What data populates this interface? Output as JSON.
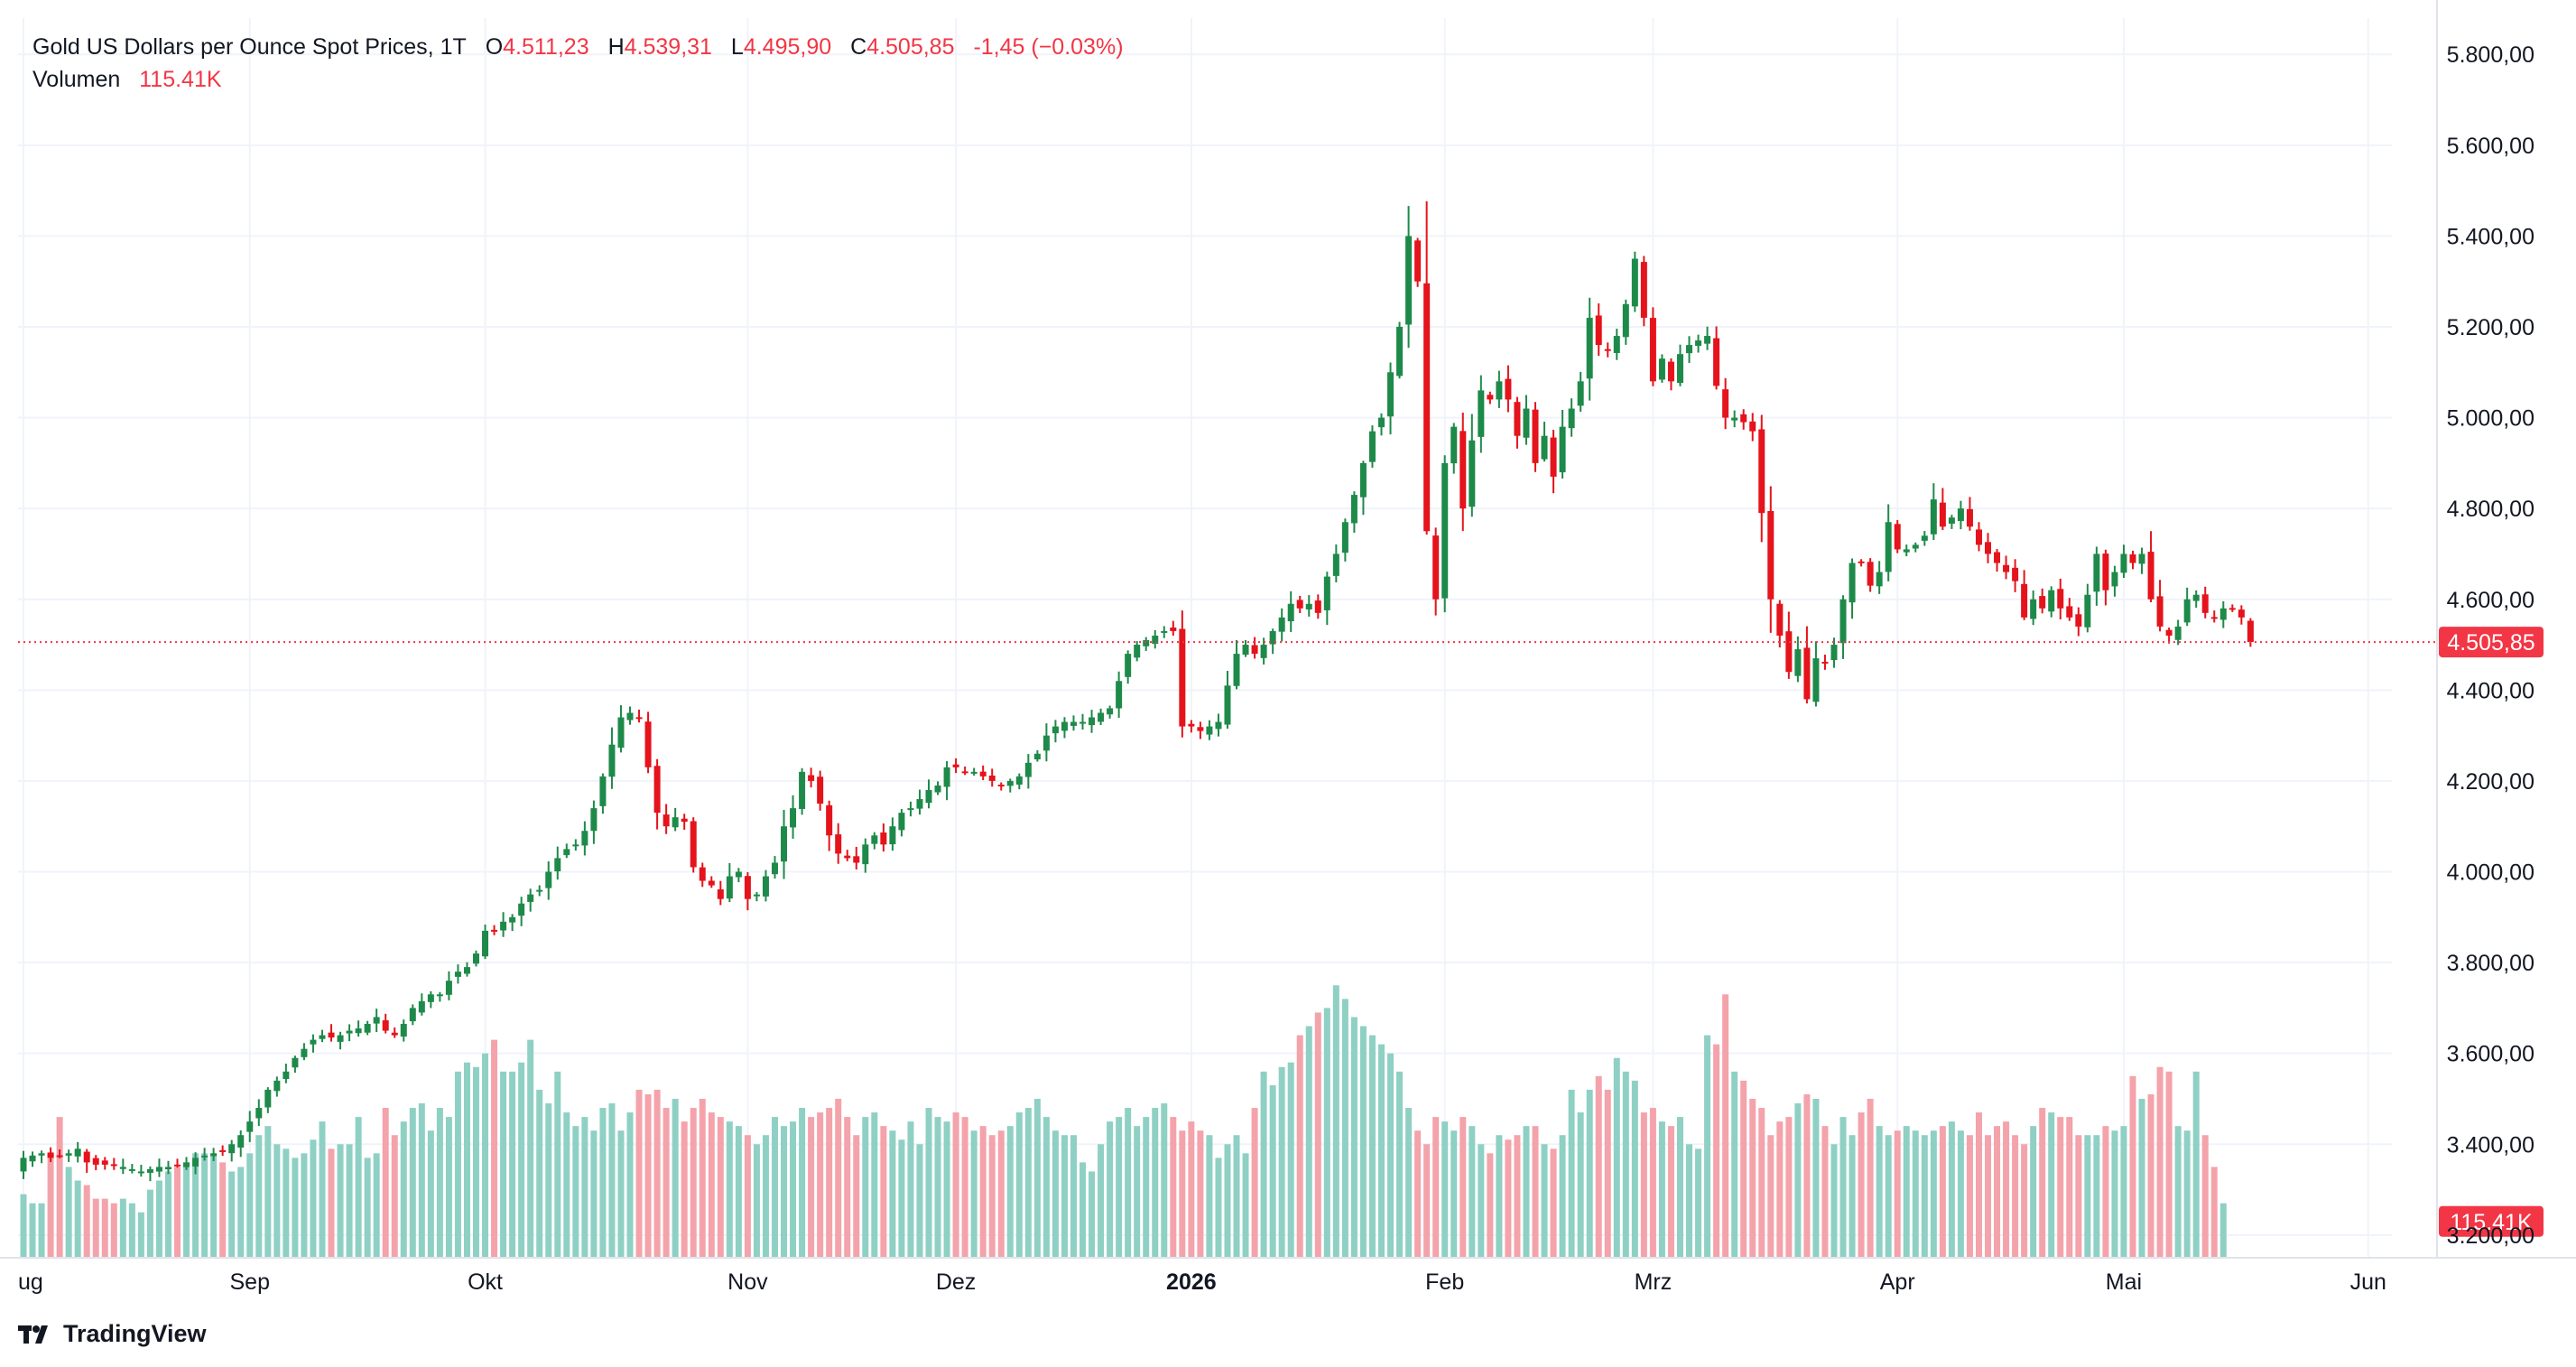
{
  "legend": {
    "title": "Gold US Dollars per Ounce Spot Prices, 1T",
    "o_label": "O",
    "o_value": "4.511,23",
    "h_label": "H",
    "h_value": "4.539,31",
    "l_label": "L",
    "l_value": "4.495,90",
    "c_label": "C",
    "c_value": "4.505,85",
    "change": "-1,45 (−0.03%)",
    "volume_label": "Volumen",
    "volume_value": "115.41K"
  },
  "brand": {
    "name": "TradingView",
    "logo_icon": "tradingview-logo-icon"
  },
  "colors": {
    "up": "#26a69a",
    "down": "#f23645",
    "candle_up": "#1e8a4a",
    "candle_down": "#e5131b",
    "vol_up": "#8fd0c4",
    "vol_down": "#f4a3ab",
    "grid": "#f0f3fa",
    "axis_text": "#131722"
  },
  "chart_data": {
    "type": "candlestick",
    "title": "Gold US Dollars per Ounce Spot Prices, 1T",
    "y_axis": {
      "min": 3150,
      "max": 5880,
      "ticks": [
        5800,
        5600,
        5400,
        5200,
        5000,
        4800,
        4600,
        4400,
        4200,
        4000,
        3800,
        3600,
        3400,
        3200
      ],
      "tick_labels": [
        "5.800,00",
        "5.600,00",
        "5.400,00",
        "5.200,00",
        "5.000,00",
        "4.800,00",
        "4.600,00",
        "4.400,00",
        "4.200,00",
        "4.000,00",
        "3.800,00",
        "3.600,00",
        "3.400,00",
        "3.200,00"
      ]
    },
    "x_axis": {
      "labels": [
        {
          "text": "ug",
          "index": 0,
          "bold": false
        },
        {
          "text": "Sep",
          "index": 25,
          "bold": false
        },
        {
          "text": "Okt",
          "index": 51,
          "bold": false
        },
        {
          "text": "Nov",
          "index": 80,
          "bold": false
        },
        {
          "text": "Dez",
          "index": 103,
          "bold": false
        },
        {
          "text": "2026",
          "index": 129,
          "bold": true
        },
        {
          "text": "Feb",
          "index": 157,
          "bold": false
        },
        {
          "text": "Mrz",
          "index": 180,
          "bold": false
        },
        {
          "text": "Apr",
          "index": 207,
          "bold": false
        },
        {
          "text": "Mai",
          "index": 232,
          "bold": false
        },
        {
          "text": "Jun",
          "index": 259,
          "bold": false
        }
      ]
    },
    "last_price": 4505.85,
    "last_price_label": "4.505,85",
    "last_volume_label": "115.41K",
    "close_series": [
      3370,
      3375,
      3380,
      3370,
      3375,
      3380,
      3390,
      3360,
      3355,
      3355,
      3352,
      3350,
      3345,
      3340,
      3345,
      3350,
      3350,
      3355,
      3360,
      3370,
      3375,
      3380,
      3385,
      3400,
      3420,
      3450,
      3480,
      3520,
      3540,
      3560,
      3590,
      3610,
      3630,
      3640,
      3635,
      3640,
      3650,
      3655,
      3665,
      3680,
      3650,
      3640,
      3665,
      3700,
      3715,
      3730,
      3730,
      3760,
      3780,
      3790,
      3820,
      3870,
      3870,
      3890,
      3900,
      3930,
      3950,
      3960,
      4000,
      4030,
      4050,
      4060,
      4090,
      4140,
      4210,
      4280,
      4340,
      4350,
      4340,
      4230,
      4130,
      4100,
      4120,
      4110,
      4010,
      3980,
      3970,
      3940,
      3990,
      4000,
      3940,
      3950,
      3990,
      4020,
      4100,
      4140,
      4220,
      4200,
      4150,
      4080,
      4040,
      4030,
      4020,
      4060,
      4080,
      4060,
      4100,
      4130,
      4140,
      4160,
      4180,
      4190,
      4230,
      4230,
      4220,
      4220,
      4210,
      4200,
      4190,
      4200,
      4210,
      4240,
      4260,
      4300,
      4320,
      4330,
      4330,
      4330,
      4340,
      4350,
      4360,
      4420,
      4480,
      4500,
      4510,
      4520,
      4530,
      4530,
      4320,
      4320,
      4310,
      4320,
      4330,
      4410,
      4480,
      4500,
      4480,
      4500,
      4530,
      4560,
      4590,
      4580,
      4590,
      4570,
      4650,
      4700,
      4770,
      4830,
      4900,
      4970,
      5000,
      5100,
      5200,
      5400,
      5300,
      4750,
      4600,
      4900,
      4980,
      4800,
      4950,
      5060,
      5040,
      5080,
      5040,
      4960,
      5020,
      4900,
      4960,
      4870,
      4980,
      5020,
      5080,
      5220,
      5160,
      5150,
      5180,
      5250,
      5350,
      5220,
      5080,
      5130,
      5080,
      5140,
      5160,
      5170,
      5180,
      5070,
      5000,
      5000,
      4990,
      4970,
      4790,
      4600,
      4520,
      4440,
      4490,
      4380,
      4470,
      4460,
      4500,
      4600,
      4680,
      4680,
      4630,
      4660,
      4770,
      4710,
      4710,
      4720,
      4740,
      4820,
      4760,
      4780,
      4800,
      4760,
      4720,
      4700,
      4680,
      4660,
      4640,
      4560,
      4600,
      4580,
      4620,
      4580,
      4560,
      4540,
      4610,
      4700,
      4620,
      4660,
      4700,
      4680,
      4700,
      4600,
      4540,
      4520,
      4540,
      4600,
      4610,
      4570,
      4560,
      4580,
      4580,
      4560,
      4506
    ],
    "volume_series": [
      3290,
      3270,
      3270,
      3380,
      3460,
      3350,
      3320,
      3310,
      3280,
      3280,
      3270,
      3280,
      3270,
      3250,
      3300,
      3320,
      3340,
      3350,
      3360,
      3380,
      3380,
      3380,
      3360,
      3340,
      3350,
      3380,
      3420,
      3440,
      3400,
      3390,
      3370,
      3380,
      3410,
      3450,
      3390,
      3400,
      3400,
      3460,
      3370,
      3380,
      3480,
      3420,
      3450,
      3480,
      3490,
      3430,
      3480,
      3460,
      3560,
      3580,
      3570,
      3600,
      3630,
      3560,
      3560,
      3580,
      3630,
      3520,
      3490,
      3560,
      3470,
      3440,
      3460,
      3430,
      3480,
      3490,
      3430,
      3470,
      3520,
      3510,
      3520,
      3480,
      3500,
      3450,
      3480,
      3500,
      3470,
      3460,
      3450,
      3440,
      3420,
      3400,
      3420,
      3460,
      3440,
      3450,
      3480,
      3460,
      3470,
      3480,
      3500,
      3460,
      3420,
      3460,
      3470,
      3440,
      3430,
      3410,
      3450,
      3400,
      3480,
      3460,
      3450,
      3470,
      3460,
      3430,
      3440,
      3420,
      3430,
      3440,
      3470,
      3480,
      3500,
      3460,
      3430,
      3420,
      3420,
      3360,
      3340,
      3400,
      3450,
      3460,
      3480,
      3440,
      3460,
      3480,
      3490,
      3460,
      3430,
      3450,
      3430,
      3420,
      3370,
      3400,
      3420,
      3380,
      3480,
      3560,
      3530,
      3570,
      3580,
      3640,
      3660,
      3690,
      3700,
      3750,
      3720,
      3680,
      3660,
      3640,
      3620,
      3600,
      3560,
      3480,
      3430,
      3400,
      3460,
      3450,
      3430,
      3460,
      3440,
      3400,
      3380,
      3420,
      3410,
      3420,
      3440,
      3440,
      3400,
      3390,
      3420,
      3520,
      3470,
      3520,
      3550,
      3520,
      3590,
      3560,
      3540,
      3470,
      3480,
      3450,
      3440,
      3460,
      3400,
      3390,
      3640,
      3620,
      3730,
      3560,
      3540,
      3500,
      3480,
      3420,
      3450,
      3460,
      3490,
      3510,
      3500,
      3440,
      3400,
      3460,
      3420,
      3470,
      3500,
      3440,
      3420,
      3430,
      3440,
      3430,
      3420,
      3430,
      3440,
      3450,
      3430,
      3420,
      3470,
      3420,
      3440,
      3450,
      3420,
      3400,
      3440,
      3480,
      3470,
      3460,
      3460,
      3420,
      3420,
      3420,
      3440,
      3430,
      3440,
      3550,
      3500,
      3510,
      3570,
      3560,
      3440,
      3430,
      3560,
      3420,
      3350,
      3270
    ]
  }
}
